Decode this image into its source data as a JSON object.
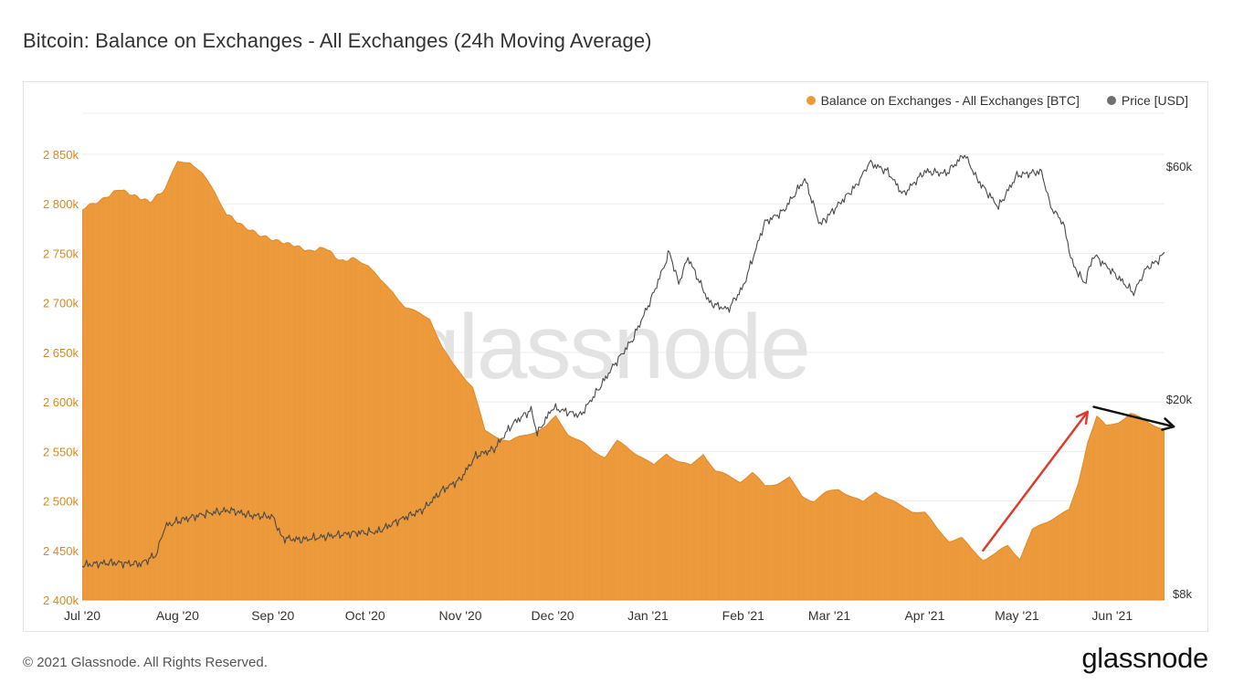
{
  "page": {
    "title": "Bitcoin: Balance on Exchanges - All Exchanges (24h Moving Average)",
    "footer_copyright": "© 2021 Glassnode. All Rights Reserved.",
    "footer_logo": "glassnode",
    "watermark": "glassnode"
  },
  "legend": [
    {
      "label": "Balance on Exchanges - All Exchanges [BTC]",
      "color": "#f09a37"
    },
    {
      "label": "Price [USD]",
      "color": "#6e6e6e"
    }
  ],
  "colors": {
    "balance_fill": "#ec9a3c",
    "balance_fill_dark": "#e08a2a",
    "price_line": "#4a4a4a",
    "left_tick": "#d68a1f",
    "gridline": "#ededed",
    "red_arrow": "#e03a2c",
    "black_arrow": "#111111"
  },
  "chart_data": {
    "type": "area",
    "x_ticks": [
      "Jul '20",
      "Aug '20",
      "Sep '20",
      "Oct '20",
      "Nov '20",
      "Dec '20",
      "Jan '21",
      "Feb '21",
      "Mar '21",
      "Apr '21",
      "May '21",
      "Jun '21"
    ],
    "x_range": [
      "2020-07-01",
      "2021-06-18"
    ],
    "y_left": {
      "ticks": [
        "2 400k",
        "2 450k",
        "2 500k",
        "2 550k",
        "2 600k",
        "2 650k",
        "2 700k",
        "2 750k",
        "2 800k",
        "2 850k"
      ],
      "range": [
        2400000,
        2855000
      ]
    },
    "y_right": {
      "ticks": [
        "$8k",
        "$20k",
        "$60k"
      ],
      "scale": "log",
      "range": [
        8000,
        60000
      ]
    },
    "series": [
      {
        "name": "Balance on Exchanges - All Exchanges [BTC]",
        "axis": "left",
        "points": [
          [
            "2020-07-01",
            2795000
          ],
          [
            "2020-07-08",
            2805000
          ],
          [
            "2020-07-13",
            2815000
          ],
          [
            "2020-07-18",
            2808000
          ],
          [
            "2020-07-23",
            2802000
          ],
          [
            "2020-07-28",
            2815000
          ],
          [
            "2020-08-01",
            2842000
          ],
          [
            "2020-08-05",
            2843000
          ],
          [
            "2020-08-09",
            2830000
          ],
          [
            "2020-08-13",
            2812000
          ],
          [
            "2020-08-17",
            2790000
          ],
          [
            "2020-08-22",
            2778000
          ],
          [
            "2020-08-28",
            2768000
          ],
          [
            "2020-09-03",
            2762000
          ],
          [
            "2020-09-08",
            2758000
          ],
          [
            "2020-09-13",
            2752000
          ],
          [
            "2020-09-18",
            2756000
          ],
          [
            "2020-09-23",
            2742000
          ],
          [
            "2020-09-28",
            2745000
          ],
          [
            "2020-10-02",
            2738000
          ],
          [
            "2020-10-06",
            2722000
          ],
          [
            "2020-10-10",
            2712000
          ],
          [
            "2020-10-14",
            2695000
          ],
          [
            "2020-10-18",
            2690000
          ],
          [
            "2020-10-22",
            2685000
          ],
          [
            "2020-10-26",
            2655000
          ],
          [
            "2020-10-29",
            2640000
          ],
          [
            "2020-11-01",
            2630000
          ],
          [
            "2020-11-05",
            2615000
          ],
          [
            "2020-11-09",
            2570000
          ],
          [
            "2020-11-13",
            2565000
          ],
          [
            "2020-11-17",
            2560000
          ],
          [
            "2020-11-21",
            2565000
          ],
          [
            "2020-11-25",
            2570000
          ],
          [
            "2020-11-29",
            2575000
          ],
          [
            "2020-12-02",
            2585000
          ],
          [
            "2020-12-06",
            2568000
          ],
          [
            "2020-12-10",
            2560000
          ],
          [
            "2020-12-14",
            2550000
          ],
          [
            "2020-12-18",
            2545000
          ],
          [
            "2020-12-22",
            2560000
          ],
          [
            "2020-12-26",
            2552000
          ],
          [
            "2020-12-30",
            2545000
          ],
          [
            "2021-01-03",
            2535000
          ],
          [
            "2021-01-07",
            2548000
          ],
          [
            "2021-01-11",
            2540000
          ],
          [
            "2021-01-15",
            2535000
          ],
          [
            "2021-01-19",
            2548000
          ],
          [
            "2021-01-23",
            2530000
          ],
          [
            "2021-01-27",
            2525000
          ],
          [
            "2021-01-31",
            2520000
          ],
          [
            "2021-02-04",
            2528000
          ],
          [
            "2021-02-08",
            2515000
          ],
          [
            "2021-02-12",
            2518000
          ],
          [
            "2021-02-16",
            2523000
          ],
          [
            "2021-02-20",
            2505000
          ],
          [
            "2021-02-24",
            2500000
          ],
          [
            "2021-02-28",
            2508000
          ],
          [
            "2021-03-04",
            2512000
          ],
          [
            "2021-03-08",
            2505000
          ],
          [
            "2021-03-12",
            2498000
          ],
          [
            "2021-03-16",
            2510000
          ],
          [
            "2021-03-20",
            2502000
          ],
          [
            "2021-03-24",
            2495000
          ],
          [
            "2021-03-28",
            2490000
          ],
          [
            "2021-04-01",
            2488000
          ],
          [
            "2021-04-05",
            2472000
          ],
          [
            "2021-04-09",
            2460000
          ],
          [
            "2021-04-13",
            2462000
          ],
          [
            "2021-04-16",
            2452000
          ],
          [
            "2021-04-20",
            2441000
          ],
          [
            "2021-04-24",
            2446000
          ],
          [
            "2021-04-28",
            2455000
          ],
          [
            "2021-05-02",
            2442000
          ],
          [
            "2021-05-06",
            2470000
          ],
          [
            "2021-05-10",
            2478000
          ],
          [
            "2021-05-14",
            2485000
          ],
          [
            "2021-05-18",
            2490000
          ],
          [
            "2021-05-21",
            2518000
          ],
          [
            "2021-05-24",
            2560000
          ],
          [
            "2021-05-27",
            2585000
          ],
          [
            "2021-05-30",
            2575000
          ],
          [
            "2021-06-03",
            2580000
          ],
          [
            "2021-06-07",
            2588000
          ],
          [
            "2021-06-11",
            2582000
          ],
          [
            "2021-06-14",
            2578000
          ],
          [
            "2021-06-18",
            2572000
          ]
        ]
      },
      {
        "name": "Price [USD]",
        "axis": "right",
        "points": [
          [
            "2020-07-01",
            9150
          ],
          [
            "2020-07-10",
            9250
          ],
          [
            "2020-07-20",
            9200
          ],
          [
            "2020-07-25",
            9600
          ],
          [
            "2020-07-28",
            11000
          ],
          [
            "2020-08-02",
            11300
          ],
          [
            "2020-08-10",
            11650
          ],
          [
            "2020-08-18",
            11850
          ],
          [
            "2020-08-25",
            11550
          ],
          [
            "2020-09-01",
            11500
          ],
          [
            "2020-09-04",
            10400
          ],
          [
            "2020-09-10",
            10300
          ],
          [
            "2020-09-20",
            10500
          ],
          [
            "2020-09-28",
            10650
          ],
          [
            "2020-10-05",
            10700
          ],
          [
            "2020-10-12",
            11300
          ],
          [
            "2020-10-20",
            11900
          ],
          [
            "2020-10-26",
            13000
          ],
          [
            "2020-11-01",
            13700
          ],
          [
            "2020-11-06",
            15300
          ],
          [
            "2020-11-12",
            15800
          ],
          [
            "2020-11-18",
            17800
          ],
          [
            "2020-11-24",
            19000
          ],
          [
            "2020-11-26",
            17000
          ],
          [
            "2020-12-01",
            19200
          ],
          [
            "2020-12-10",
            18500
          ],
          [
            "2020-12-16",
            21000
          ],
          [
            "2020-12-21",
            23500
          ],
          [
            "2020-12-27",
            26500
          ],
          [
            "2021-01-02",
            32000
          ],
          [
            "2021-01-08",
            40000
          ],
          [
            "2021-01-11",
            34500
          ],
          [
            "2021-01-14",
            39000
          ],
          [
            "2021-01-21",
            31500
          ],
          [
            "2021-01-27",
            30500
          ],
          [
            "2021-02-01",
            34000
          ],
          [
            "2021-02-08",
            46000
          ],
          [
            "2021-02-14",
            48500
          ],
          [
            "2021-02-21",
            56500
          ],
          [
            "2021-02-26",
            45500
          ],
          [
            "2021-03-02",
            48500
          ],
          [
            "2021-03-10",
            55000
          ],
          [
            "2021-03-14",
            61000
          ],
          [
            "2021-03-20",
            58500
          ],
          [
            "2021-03-25",
            52500
          ],
          [
            "2021-04-01",
            58500
          ],
          [
            "2021-04-08",
            58000
          ],
          [
            "2021-04-14",
            63500
          ],
          [
            "2021-04-18",
            56500
          ],
          [
            "2021-04-25",
            49500
          ],
          [
            "2021-05-01",
            57500
          ],
          [
            "2021-05-09",
            58500
          ],
          [
            "2021-05-12",
            49500
          ],
          [
            "2021-05-16",
            46000
          ],
          [
            "2021-05-19",
            38000
          ],
          [
            "2021-05-23",
            34500
          ],
          [
            "2021-05-26",
            39500
          ],
          [
            "2021-06-01",
            36500
          ],
          [
            "2021-06-08",
            33000
          ],
          [
            "2021-06-12",
            37000
          ],
          [
            "2021-06-16",
            38500
          ],
          [
            "2021-06-18",
            40000
          ]
        ]
      }
    ],
    "annotations": [
      {
        "type": "arrow",
        "color": "red",
        "from": [
          "2021-04-20",
          2450000
        ],
        "to": [
          "2021-05-24",
          2590000
        ]
      },
      {
        "type": "arrow",
        "color": "black",
        "from": [
          "2021-05-26",
          2595000
        ],
        "to": [
          "2021-06-21",
          2575000
        ]
      }
    ],
    "grid": true
  }
}
